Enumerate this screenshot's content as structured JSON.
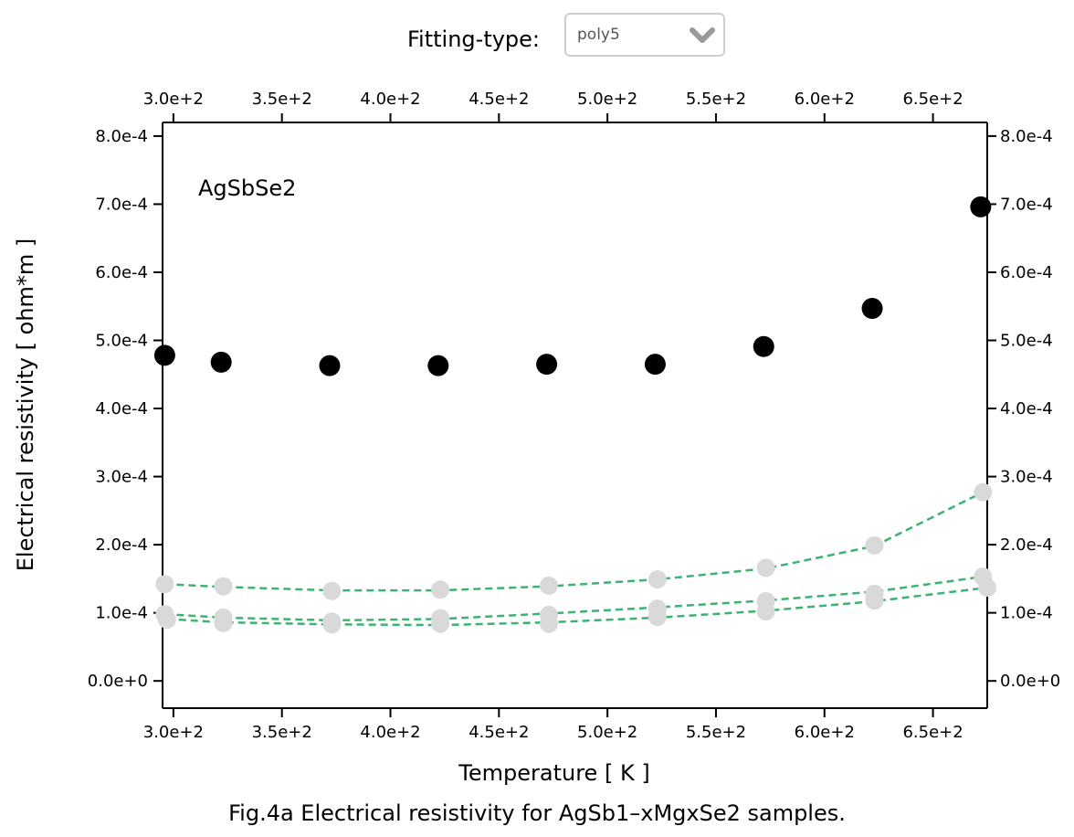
{
  "controls": {
    "fitting_label": "Fitting-type:",
    "fitting_value": "poly5",
    "chevron_icon": "chevron-down-icon"
  },
  "caption": "Fig.4a Electrical resistivity for AgSb1–xMgxSe2 samples.",
  "chart_data": {
    "type": "scatter",
    "annotation": "AgSbSe2",
    "xlabel": "Temperature [ K ]",
    "ylabel": "Electrical resistivity [ ohm*m ]",
    "xlim": [
      295,
      675
    ],
    "ylim": [
      -4e-05,
      0.00082
    ],
    "x_ticks": [
      300,
      350,
      400,
      450,
      500,
      550,
      600,
      650
    ],
    "x_tick_labels": [
      "3.0e+2",
      "3.5e+2",
      "4.0e+2",
      "4.5e+2",
      "5.0e+2",
      "5.5e+2",
      "6.0e+2",
      "6.5e+2"
    ],
    "y_ticks": [
      0,
      0.0001,
      0.0002,
      0.0003,
      0.0004,
      0.0005,
      0.0006,
      0.0007,
      0.0008
    ],
    "y_tick_labels": [
      "0.0e+0",
      "1.0e-4",
      "2.0e-4",
      "3.0e-4",
      "4.0e-4",
      "5.0e-4",
      "6.0e-4",
      "7.0e-4",
      "8.0e-4"
    ],
    "grid": false,
    "colors": {
      "highlight": "#000000",
      "other": "#d9d9d9",
      "fit": "#3cb371"
    },
    "series": [
      {
        "role": "highlight",
        "x": [
          296,
          322,
          372,
          422,
          472,
          522,
          572,
          622,
          672
        ],
        "y": [
          0.000478,
          0.000468,
          0.000463,
          0.000463,
          0.000465,
          0.000465,
          0.000491,
          0.000547,
          0.000696
        ]
      },
      {
        "role": "other",
        "x": [
          296,
          323,
          373,
          423,
          473,
          523,
          573,
          623,
          673
        ],
        "y": [
          0.000142,
          0.000139,
          0.000132,
          0.000134,
          0.00014,
          0.000149,
          0.000166,
          0.000199,
          0.000277
        ],
        "fit": [
          0.000142,
          0.000138,
          0.000133,
          0.000133,
          0.000139,
          0.000149,
          0.000165,
          0.000198,
          0.000277
        ]
      },
      {
        "role": "other",
        "x": [
          296,
          323,
          373,
          423,
          473,
          523,
          573,
          623,
          673
        ],
        "y": [
          9.8e-05,
          9.3e-05,
          8.7e-05,
          9.2e-05,
          9.7e-05,
          0.000106,
          0.000117,
          0.000128,
          0.000153
        ],
        "fit": [
          9.8e-05,
          9.3e-05,
          8.9e-05,
          9.1e-05,
          9.9e-05,
          0.000108,
          0.000118,
          0.000131,
          0.000153
        ]
      },
      {
        "role": "other",
        "x": [
          297,
          323,
          373,
          423,
          473,
          523,
          573,
          623,
          675
        ],
        "y": [
          9e-05,
          8.5e-05,
          8.3e-05,
          8.4e-05,
          8.4e-05,
          9.4e-05,
          0.000102,
          0.000118,
          0.000137
        ],
        "fit": [
          9.1e-05,
          8.6e-05,
          8.3e-05,
          8.2e-05,
          8.6e-05,
          9.3e-05,
          0.000103,
          0.000117,
          0.000137
        ]
      }
    ]
  }
}
